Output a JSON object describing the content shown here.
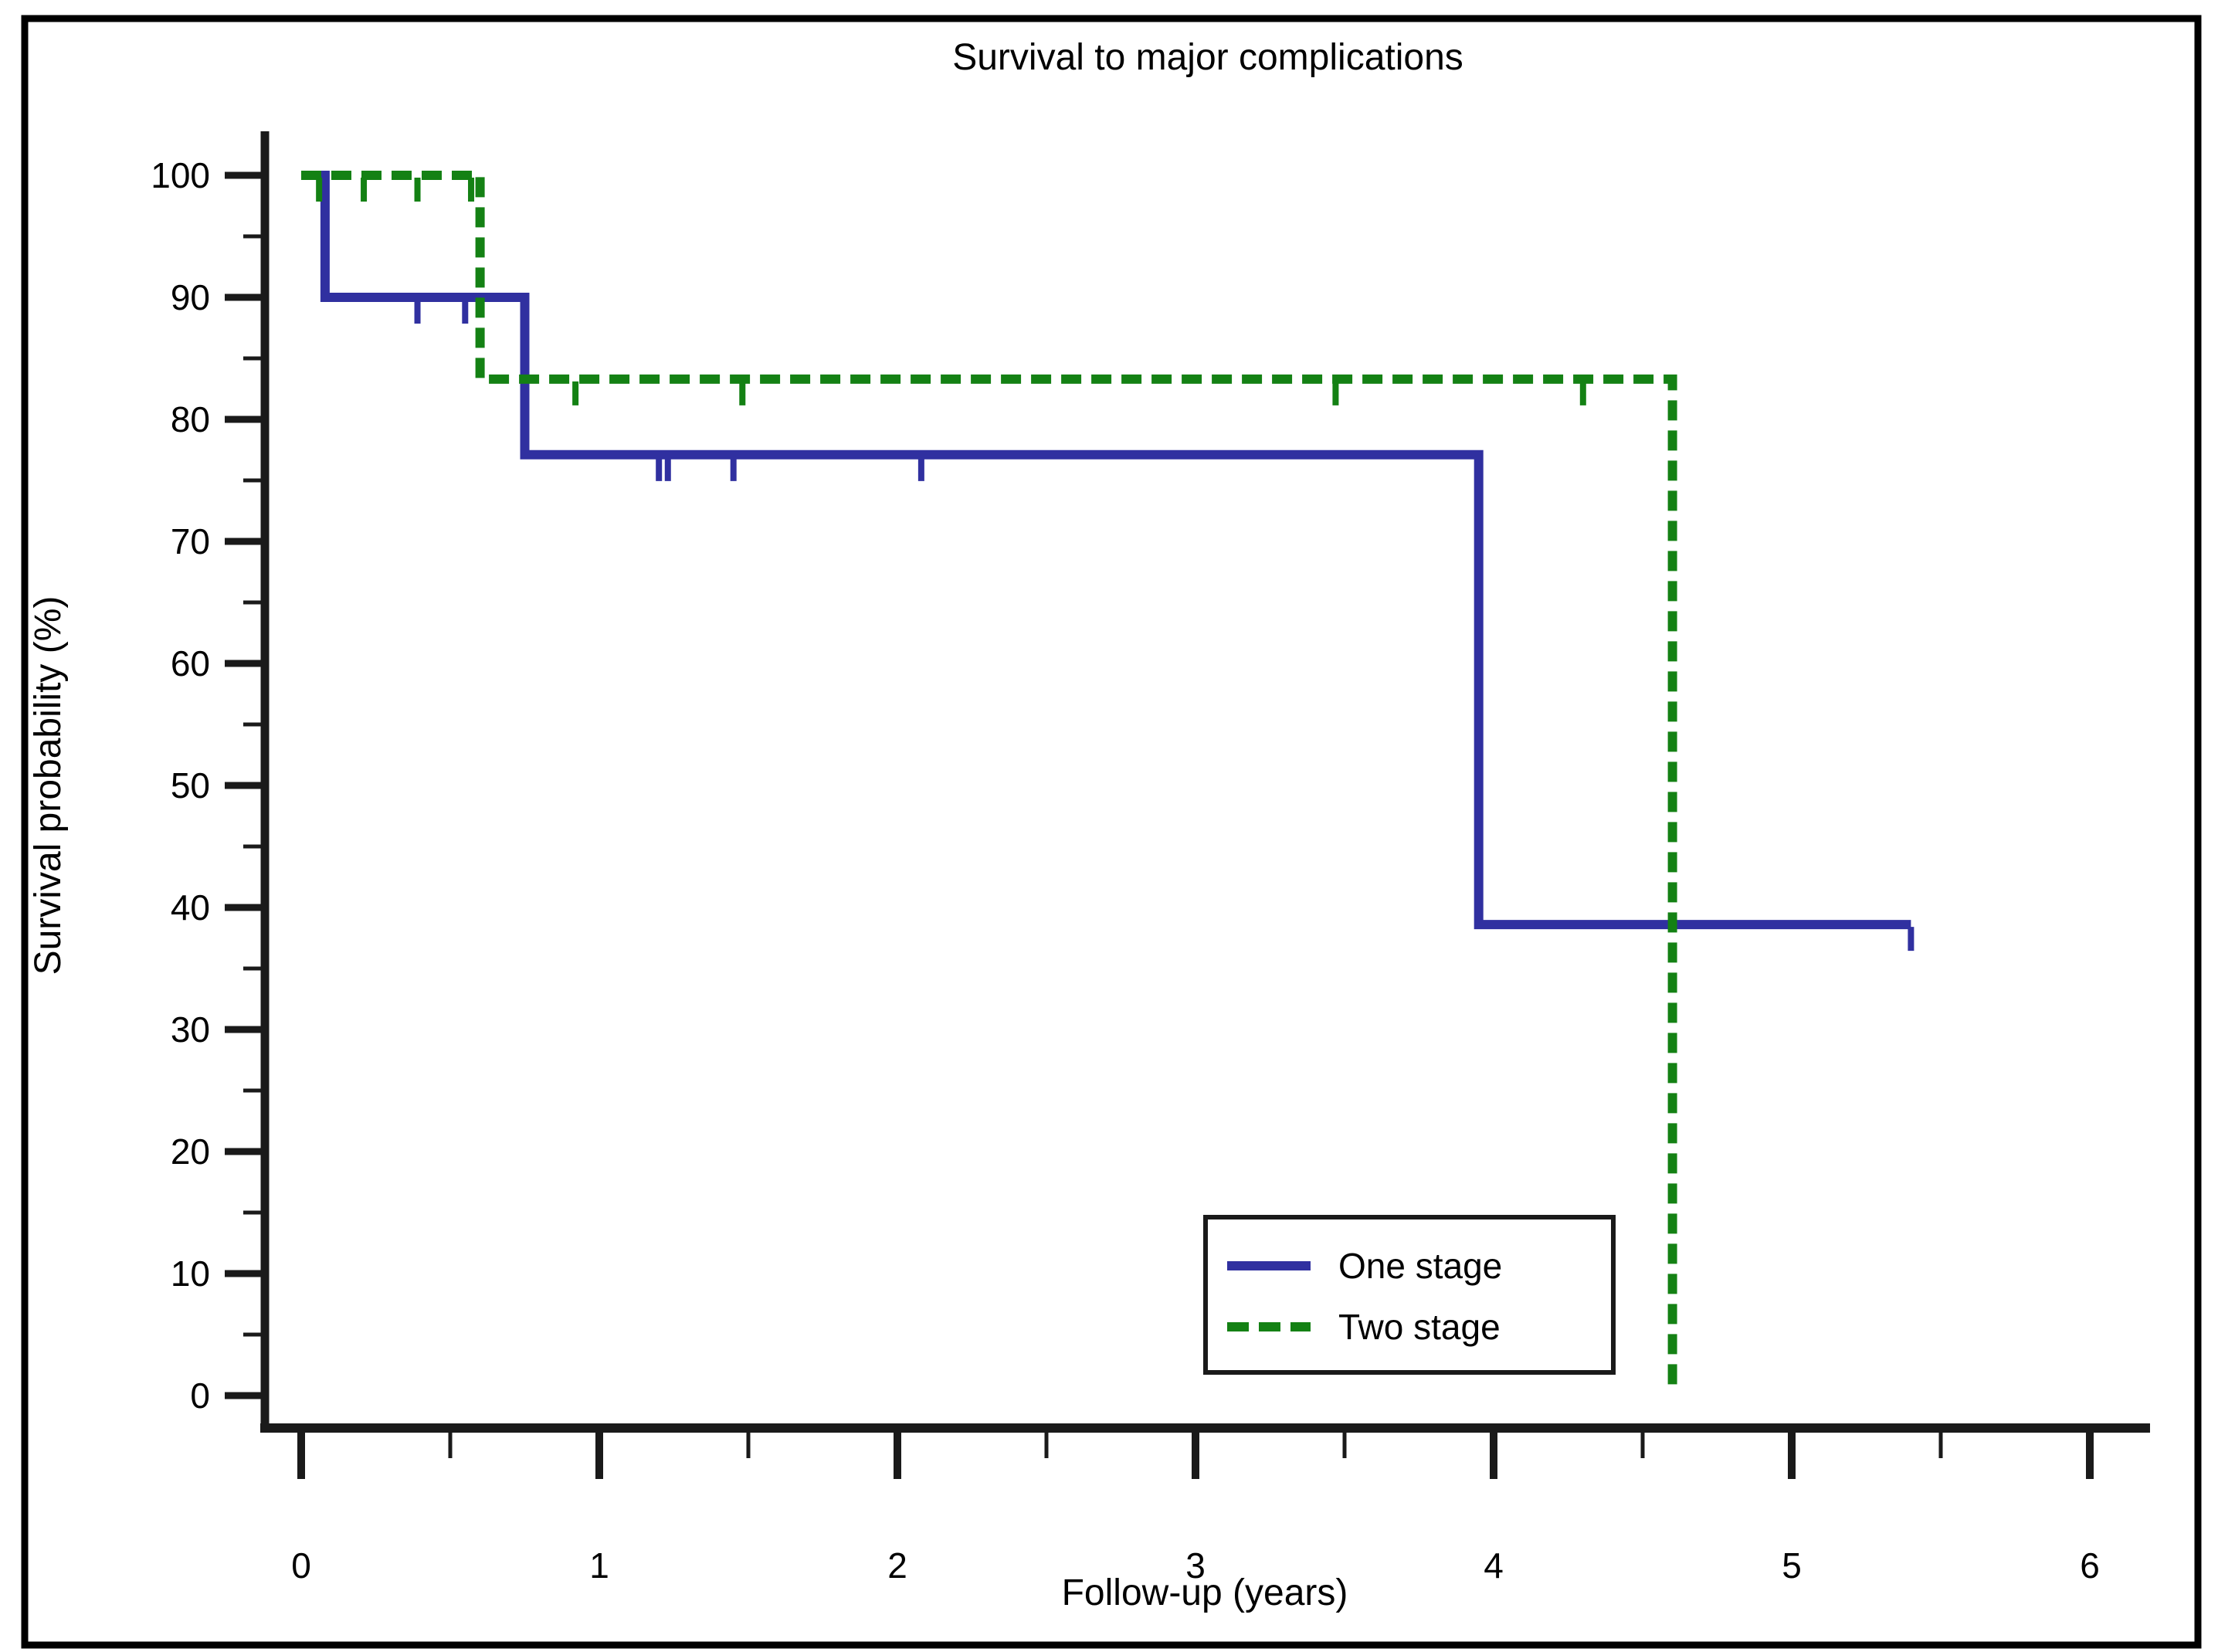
{
  "chart_data": {
    "type": "line",
    "subtype": "kaplan-meier-step-curves-with-censor-ticks",
    "title": "Survival to major complications",
    "xlabel": "Follow-up (years)",
    "ylabel": "Survival probability (%)",
    "xlim": [
      0,
      6.2
    ],
    "ylim": [
      0,
      100
    ],
    "grid": false,
    "legend_position": "inside-lower-right",
    "axis_color": "#1a1a1a",
    "frame_color": "#000000",
    "x_ticks": {
      "major": [
        0,
        1,
        2,
        3,
        4,
        5,
        6
      ],
      "minor": [
        0.5,
        1.5,
        2.5,
        3.5,
        4.5,
        5.5
      ]
    },
    "y_ticks": {
      "major": [
        0,
        10,
        20,
        30,
        40,
        50,
        60,
        70,
        80,
        90,
        100
      ],
      "minor": [
        5,
        15,
        25,
        35,
        45,
        55,
        65,
        75,
        85,
        95
      ]
    },
    "series": [
      {
        "name": "One stage",
        "color": "#3030A0",
        "line": "solid",
        "steps": [
          [
            0,
            100
          ],
          [
            0.08,
            100
          ],
          [
            0.08,
            90
          ],
          [
            0.75,
            90
          ],
          [
            0.75,
            77.1
          ],
          [
            3.95,
            77.1
          ],
          [
            3.95,
            38.6
          ],
          [
            5.4,
            38.6
          ]
        ],
        "censors": [
          {
            "t": 0.39,
            "v": 90
          },
          {
            "t": 0.55,
            "v": 90
          },
          {
            "t": 1.2,
            "v": 77.1
          },
          {
            "t": 1.23,
            "v": 77.1
          },
          {
            "t": 1.45,
            "v": 77.1
          },
          {
            "t": 2.08,
            "v": 77.1
          },
          {
            "t": 5.4,
            "v": 38.6
          }
        ]
      },
      {
        "name": "Two stage",
        "color": "#148114",
        "line": "dashed",
        "steps": [
          [
            0,
            100
          ],
          [
            0.6,
            100
          ],
          [
            0.6,
            83.3
          ],
          [
            4.6,
            83.3
          ],
          [
            4.6,
            0.5
          ]
        ],
        "censors": [
          {
            "t": 0.06,
            "v": 100
          },
          {
            "t": 0.21,
            "v": 100
          },
          {
            "t": 0.39,
            "v": 100
          },
          {
            "t": 0.57,
            "v": 100
          },
          {
            "t": 0.92,
            "v": 83.3
          },
          {
            "t": 1.48,
            "v": 83.3
          },
          {
            "t": 3.47,
            "v": 83.3
          },
          {
            "t": 4.3,
            "v": 83.3
          }
        ]
      }
    ]
  },
  "legend": {
    "items": [
      {
        "label": "One stage"
      },
      {
        "label": "Two stage"
      }
    ]
  }
}
